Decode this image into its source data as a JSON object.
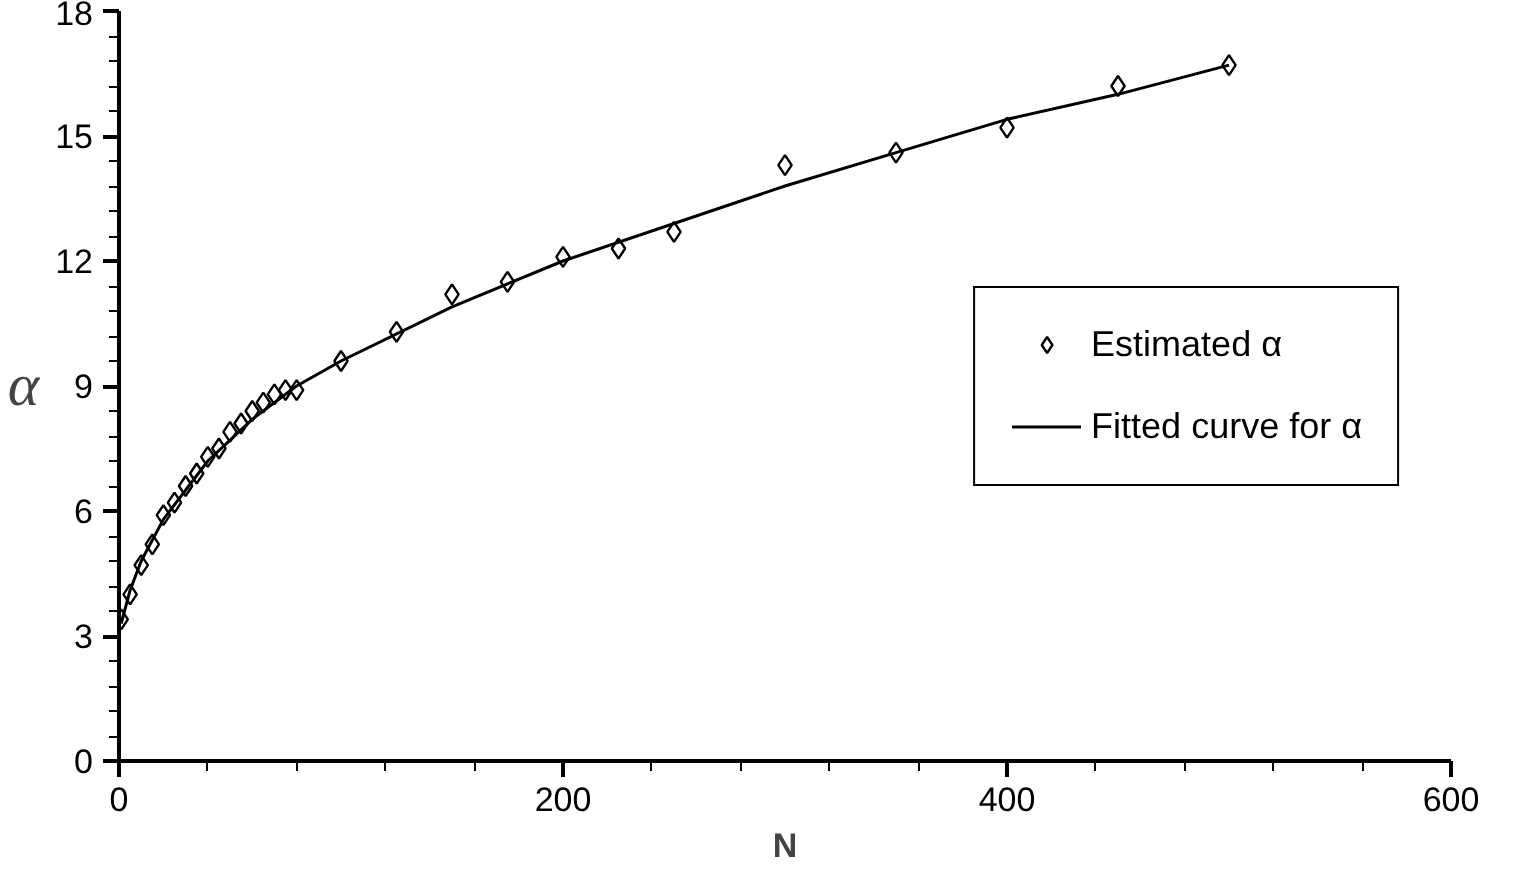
{
  "chart_data": {
    "type": "scatter",
    "xlabel": "N",
    "ylabel": "α",
    "xlim": [
      0,
      600
    ],
    "ylim": [
      0,
      18
    ],
    "xticks": [
      0,
      200,
      400,
      600
    ],
    "yticks": [
      0,
      3,
      6,
      9,
      12,
      15,
      18
    ],
    "grid": false,
    "legend": "right",
    "series": [
      {
        "name": "Estimated α",
        "marker": "diamond",
        "color": "#000000",
        "x": [
          1,
          5,
          10,
          15,
          20,
          25,
          30,
          35,
          40,
          45,
          50,
          55,
          60,
          65,
          70,
          75,
          80,
          100,
          125,
          150,
          175,
          200,
          225,
          250,
          300,
          350,
          400,
          450,
          500
        ],
        "values": [
          3.4,
          4.0,
          4.7,
          5.2,
          5.9,
          6.2,
          6.6,
          6.9,
          7.3,
          7.5,
          7.9,
          8.1,
          8.4,
          8.6,
          8.8,
          8.9,
          8.9,
          9.6,
          10.3,
          11.2,
          11.5,
          12.1,
          12.3,
          12.7,
          14.3,
          14.6,
          15.2,
          16.2,
          16.7
        ]
      },
      {
        "name": "Fitted curve for α",
        "type": "line",
        "line_style": "solid",
        "color": "#000000",
        "x": [
          1,
          5,
          10,
          20,
          40,
          60,
          80,
          100,
          150,
          200,
          250,
          300,
          350,
          400,
          450,
          500
        ],
        "values": [
          3.3,
          4.1,
          4.8,
          5.8,
          7.2,
          8.2,
          9.0,
          9.6,
          10.9,
          12.0,
          12.9,
          13.8,
          14.6,
          15.4,
          16.0,
          16.7
        ]
      }
    ]
  }
}
